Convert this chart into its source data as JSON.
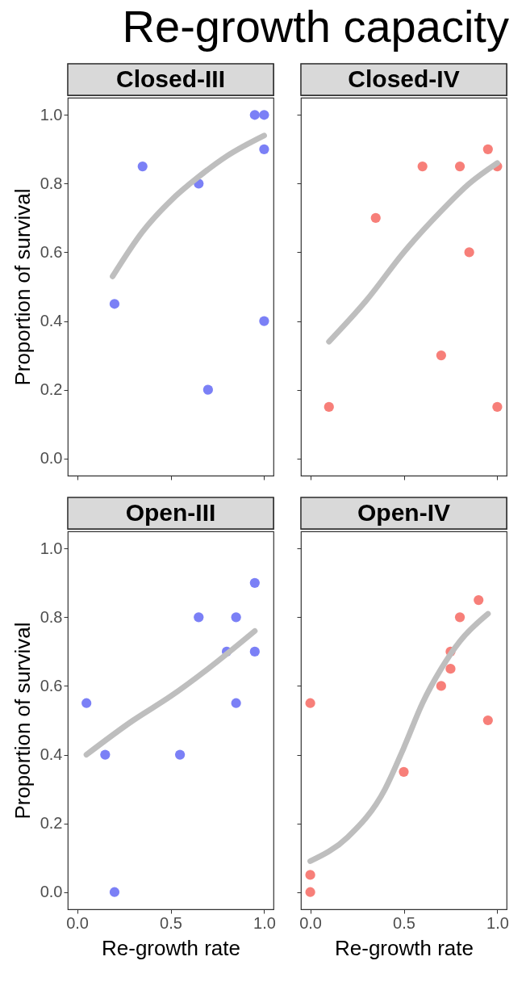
{
  "chart_data": [
    {
      "type": "scatter",
      "title": "Closed-III",
      "ylabel": "Proportion of survival",
      "annotations": [
        "Re-growth capacity"
      ],
      "tick_labels": "y",
      "xlim": [
        -0.05,
        1.05
      ],
      "ylim": [
        -0.05,
        1.05
      ],
      "xticks": [
        {
          "value": 0,
          "label": null
        },
        {
          "value": 0.5,
          "label": null
        },
        {
          "value": 1,
          "label": null
        }
      ],
      "yticks": [
        {
          "value": 0,
          "label": "0.0"
        },
        0.2,
        0.4,
        0.6,
        0.8,
        {
          "value": 1,
          "label": "1.0"
        }
      ],
      "series": [
        {
          "color": "#7b80f6",
          "marker": "circle",
          "x": [
            0.2,
            0.35,
            0.65,
            0.7,
            0.95,
            1.0,
            1.0,
            1.0
          ],
          "values": [
            0.45,
            0.85,
            0.8,
            0.2,
            1.0,
            1.0,
            0.9,
            0.4
          ]
        },
        {
          "type": "line",
          "color": "#bebebe",
          "x": [
            0.19,
            0.35,
            0.5,
            0.65,
            0.8,
            1.0
          ],
          "values": [
            0.53,
            0.66,
            0.75,
            0.82,
            0.88,
            0.94
          ]
        }
      ]
    },
    {
      "type": "scatter",
      "title": "Closed-IV",
      "tick_labels": false,
      "xlim": [
        -0.05,
        1.05
      ],
      "ylim": [
        -0.05,
        1.05
      ],
      "xticks": [
        {
          "value": 0,
          "label": null
        },
        {
          "value": 0.5,
          "label": null
        },
        {
          "value": 1,
          "label": null
        }
      ],
      "yticks": [
        {
          "value": 0,
          "label": null
        },
        {
          "value": 0.2,
          "label": null
        },
        {
          "value": 0.4,
          "label": null
        },
        {
          "value": 0.6,
          "label": null
        },
        {
          "value": 0.8,
          "label": null
        },
        {
          "value": 1,
          "label": null
        }
      ],
      "series": [
        {
          "color": "#f77f79",
          "marker": "circle",
          "x": [
            0.1,
            0.35,
            0.6,
            0.7,
            0.8,
            0.85,
            0.95,
            1.0,
            1.0
          ],
          "values": [
            0.15,
            0.7,
            0.85,
            0.3,
            0.85,
            0.6,
            0.9,
            0.85,
            0.15
          ]
        },
        {
          "type": "line",
          "color": "#bebebe",
          "x": [
            0.1,
            0.3,
            0.5,
            0.7,
            0.85,
            1.0
          ],
          "values": [
            0.34,
            0.46,
            0.6,
            0.72,
            0.8,
            0.86
          ]
        }
      ]
    },
    {
      "type": "scatter",
      "title": "Open-III",
      "xlabel": "Re-growth rate",
      "ylabel": "Proportion of survival",
      "xlim": [
        -0.05,
        1.05
      ],
      "ylim": [
        -0.05,
        1.05
      ],
      "xticks": [
        {
          "value": 0,
          "label": "0.0"
        },
        0.5,
        {
          "value": 1,
          "label": "1.0"
        }
      ],
      "yticks": [
        {
          "value": 0,
          "label": "0.0"
        },
        0.2,
        0.4,
        0.6,
        0.8,
        {
          "value": 1,
          "label": "1.0"
        }
      ],
      "series": [
        {
          "color": "#7b80f6",
          "marker": "circle",
          "x": [
            0.05,
            0.15,
            0.2,
            0.55,
            0.65,
            0.8,
            0.85,
            0.85,
            0.95,
            0.95
          ],
          "values": [
            0.55,
            0.4,
            0.0,
            0.4,
            0.8,
            0.7,
            0.8,
            0.55,
            0.9,
            0.7
          ]
        },
        {
          "type": "line",
          "color": "#bebebe",
          "x": [
            0.05,
            0.3,
            0.5,
            0.7,
            0.95
          ],
          "values": [
            0.4,
            0.5,
            0.57,
            0.65,
            0.76
          ]
        }
      ]
    },
    {
      "type": "scatter",
      "title": "Open-IV",
      "xlabel": "Re-growth rate",
      "tick_labels": "x",
      "xlim": [
        -0.05,
        1.05
      ],
      "ylim": [
        -0.05,
        1.05
      ],
      "xticks": [
        {
          "value": 0,
          "label": "0.0"
        },
        0.5,
        {
          "value": 1,
          "label": "1.0"
        }
      ],
      "yticks": [
        {
          "value": 0,
          "label": null
        },
        {
          "value": 0.2,
          "label": null
        },
        {
          "value": 0.4,
          "label": null
        },
        {
          "value": 0.6,
          "label": null
        },
        {
          "value": 0.8,
          "label": null
        },
        {
          "value": 1,
          "label": null
        }
      ],
      "series": [
        {
          "color": "#f77f79",
          "marker": "circle",
          "x": [
            0,
            0,
            0,
            0.5,
            0.7,
            0.75,
            0.75,
            0.8,
            0.9,
            0.95
          ],
          "values": [
            0.55,
            0.05,
            0.0,
            0.35,
            0.6,
            0.7,
            0.65,
            0.8,
            0.85,
            0.5
          ]
        },
        {
          "type": "line",
          "color": "#bebebe",
          "x": [
            0,
            0.2,
            0.4,
            0.5,
            0.6,
            0.7,
            0.8,
            0.95
          ],
          "values": [
            0.09,
            0.16,
            0.3,
            0.42,
            0.55,
            0.65,
            0.73,
            0.81
          ]
        }
      ]
    }
  ]
}
